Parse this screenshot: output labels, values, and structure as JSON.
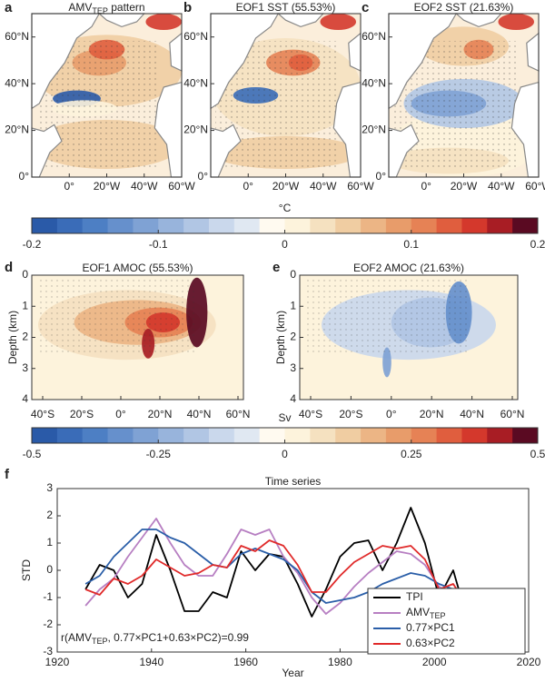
{
  "maps": {
    "panels": [
      {
        "letter": "a",
        "title": "AMV",
        "title_sub": "TEP",
        "title_end": " pattern"
      },
      {
        "letter": "b",
        "title": "EOF1 SST (55.53%)"
      },
      {
        "letter": "c",
        "title": "EOF2 SST (21.63%)"
      }
    ],
    "lat_labels": [
      "0°",
      "20°N",
      "40°N",
      "60°N"
    ],
    "lon_labels": [
      "60°W",
      "40°W",
      "20°W",
      "0°"
    ]
  },
  "colorbar_sst": {
    "unit": "°C",
    "lim": [
      -0.2,
      0.2
    ],
    "ticks": [
      -0.2,
      -0.1,
      0,
      0.1,
      0.2
    ]
  },
  "amoc": {
    "panels": [
      {
        "letter": "d",
        "title": "EOF1 AMOC (55.53%)"
      },
      {
        "letter": "e",
        "title": "EOF2 AMOC (21.63%)"
      }
    ],
    "ylabel": "Depth (km)",
    "ylim": [
      0,
      4
    ],
    "yticks": [
      0,
      1,
      2,
      3,
      4
    ],
    "x_labels": [
      "40°S",
      "20°S",
      "0°",
      "20°N",
      "40°N",
      "60°N"
    ]
  },
  "colorbar_amoc": {
    "unit": "Sv",
    "lim": [
      -0.5,
      0.5
    ],
    "ticks": [
      -0.5,
      -0.25,
      0,
      0.25,
      0.5
    ]
  },
  "colorbar_colors": [
    "#2a5aa8",
    "#3a6cb8",
    "#4d7fc4",
    "#6690cc",
    "#7fa2d4",
    "#98b4dc",
    "#b1c6e4",
    "#cad8ec",
    "#e0e8f2",
    "#fffaf0",
    "#fdf3dc",
    "#f5e1c0",
    "#f0cda2",
    "#ecb585",
    "#e89c6a",
    "#e68255",
    "#e05e3e",
    "#d4382c",
    "#a81d24",
    "#5a0a22"
  ],
  "chart_data": {
    "type": "line",
    "letter": "f",
    "title": "Time series",
    "xlabel": "Year",
    "ylabel": "STD",
    "xlim": [
      1920,
      2020
    ],
    "xticks": [
      1920,
      1940,
      1960,
      1980,
      2000,
      2020
    ],
    "ylim": [
      -3,
      3
    ],
    "yticks": [
      -3,
      -2,
      -1,
      0,
      1,
      2,
      3
    ],
    "legend": "lower right",
    "annotation": "r(AMV",
    "annotation_sub": "TEP",
    "annotation_end": ", 0.77×PC1+0.63×PC2)=0.99",
    "x": [
      1926,
      1929,
      1932,
      1935,
      1938,
      1941,
      1944,
      1947,
      1950,
      1953,
      1956,
      1959,
      1962,
      1965,
      1968,
      1971,
      1974,
      1977,
      1980,
      1983,
      1986,
      1989,
      1992,
      1995,
      1998,
      2001,
      2004,
      2007
    ],
    "series": [
      {
        "name": "TPI",
        "color": "#000000",
        "values": [
          -0.7,
          0.2,
          0.0,
          -1.0,
          -0.5,
          1.3,
          0.0,
          -1.5,
          -1.5,
          -0.8,
          -1.0,
          0.7,
          0.0,
          0.6,
          0.5,
          -0.5,
          -1.7,
          -0.7,
          0.5,
          1.0,
          1.1,
          0.0,
          1.0,
          2.3,
          1.0,
          -1.0,
          0.0,
          -1.8
        ]
      },
      {
        "name": "AMV",
        "name_sub": "TEP",
        "color": "#b77fc2",
        "values": [
          -1.3,
          -0.7,
          -0.3,
          0.5,
          1.2,
          1.9,
          1.0,
          0.2,
          -0.2,
          -0.2,
          0.6,
          1.5,
          1.3,
          1.5,
          0.5,
          -0.1,
          -1.0,
          -1.6,
          -1.2,
          -0.6,
          -0.1,
          0.3,
          0.7,
          0.6,
          0.2,
          -0.6,
          -0.9,
          -2.3
        ]
      },
      {
        "name": "0.77×PC1",
        "color": "#2a5ea8",
        "values": [
          -0.5,
          -0.2,
          0.5,
          1.0,
          1.5,
          1.5,
          1.2,
          1.0,
          0.6,
          0.2,
          0.1,
          0.6,
          0.8,
          0.6,
          0.4,
          0.0,
          -0.8,
          -1.2,
          -1.1,
          -1.0,
          -0.8,
          -0.5,
          -0.3,
          -0.1,
          -0.2,
          -0.5,
          -0.7,
          -1.0
        ]
      },
      {
        "name": "0.63×PC2",
        "color": "#e02a2a",
        "values": [
          -0.7,
          -0.9,
          -0.3,
          -0.5,
          -0.2,
          0.4,
          0.1,
          -0.2,
          -0.1,
          0.2,
          0.1,
          0.9,
          0.7,
          1.1,
          0.9,
          0.2,
          -0.8,
          -0.8,
          -0.2,
          0.3,
          0.6,
          0.9,
          0.8,
          0.9,
          0.4,
          -0.7,
          -0.5,
          -1.3
        ]
      }
    ]
  }
}
